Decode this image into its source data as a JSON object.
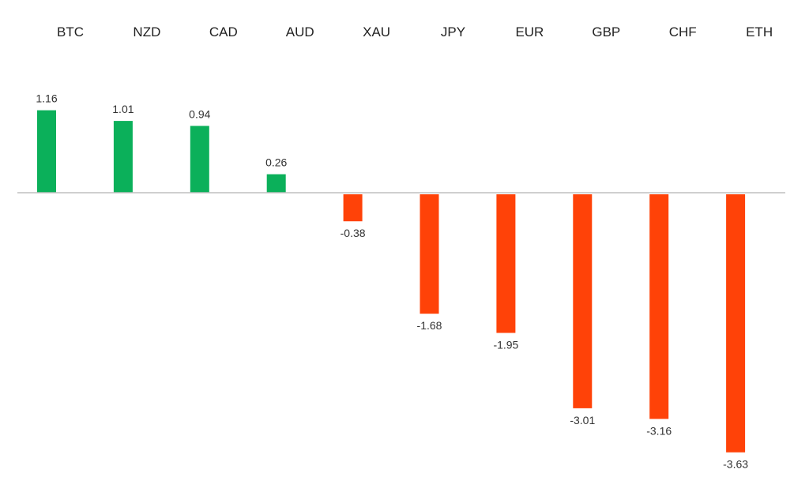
{
  "chart_data": {
    "type": "bar",
    "title": "",
    "xlabel": "",
    "ylabel": "",
    "categories": [
      "BTC",
      "NZD",
      "CAD",
      "AUD",
      "XAU",
      "JPY",
      "EUR",
      "GBP",
      "CHF",
      "ETH"
    ],
    "values": [
      1.16,
      1.01,
      0.94,
      0.26,
      -0.38,
      -1.68,
      -1.95,
      -3.01,
      -3.16,
      -3.63
    ],
    "value_labels": [
      "1.16",
      "1.01",
      "0.94",
      "0.26",
      "-0.38",
      "-1.68",
      "-1.95",
      "-3.01",
      "-3.16",
      "-3.63"
    ],
    "ylim": [
      -3.63,
      1.16
    ],
    "grid": false,
    "legend": "none",
    "category_labels_position": "top",
    "colors": {
      "positive": "#0bb05a",
      "negative": "#ff4208",
      "baseline": "#bfbfbf"
    }
  }
}
